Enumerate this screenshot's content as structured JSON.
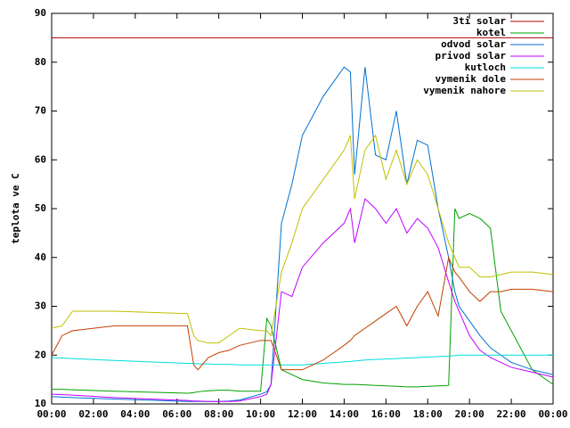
{
  "chart_data": {
    "type": "line",
    "ylabel": "teplota ve C",
    "x": [
      0,
      0.5,
      1,
      3,
      6.5,
      6.8,
      7,
      7.5,
      8,
      8.5,
      9,
      10,
      10.3,
      10.5,
      11,
      11.5,
      12,
      13,
      14,
      14.3,
      14.5,
      15,
      15.5,
      16,
      16.5,
      17,
      17.5,
      18,
      18.5,
      19,
      19.3,
      19.5,
      20,
      20.5,
      21,
      21.5,
      22,
      23,
      24
    ],
    "xlim": [
      0,
      24
    ],
    "xticks": [
      {
        "value": 0,
        "label": "00:00"
      },
      {
        "value": 2,
        "label": "02:00"
      },
      {
        "value": 4,
        "label": "04:00"
      },
      {
        "value": 6,
        "label": "06:00"
      },
      {
        "value": 8,
        "label": "08:00"
      },
      {
        "value": 10,
        "label": "10:00"
      },
      {
        "value": 12,
        "label": "12:00"
      },
      {
        "value": 14,
        "label": "14:00"
      },
      {
        "value": 16,
        "label": "16:00"
      },
      {
        "value": 18,
        "label": "18:00"
      },
      {
        "value": 20,
        "label": "20:00"
      },
      {
        "value": 22,
        "label": "22:00"
      },
      {
        "value": 24,
        "label": "00:00"
      }
    ],
    "ylim": [
      10,
      90
    ],
    "yticks": [
      10,
      20,
      30,
      40,
      50,
      60,
      70,
      80,
      90
    ],
    "legend": "top-right",
    "series": [
      {
        "name": "3ti solar",
        "color": "#b00000",
        "values": [
          85,
          85,
          85,
          85,
          85,
          85,
          85,
          85,
          85,
          85,
          85,
          85,
          85,
          85,
          85,
          85,
          85,
          85,
          85,
          85,
          85,
          85,
          85,
          85,
          85,
          85,
          85,
          85,
          85,
          85,
          85,
          85,
          85,
          85,
          85,
          85,
          85,
          85,
          85
        ]
      },
      {
        "name": "kotel",
        "color": "#00a000",
        "values": [
          13,
          13,
          12.9,
          12.6,
          12.2,
          12.3,
          12.5,
          12.7,
          12.8,
          12.8,
          12.6,
          12.6,
          27.5,
          26,
          17,
          16,
          15,
          14.3,
          14,
          14,
          14,
          13.9,
          13.8,
          13.7,
          13.6,
          13.5,
          13.5,
          13.6,
          13.7,
          13.8,
          50,
          48,
          49,
          48,
          46,
          29,
          25,
          17,
          14
        ]
      },
      {
        "name": "odvod solar",
        "color": "#0070d0",
        "values": [
          11.5,
          11.4,
          11.3,
          11,
          10.5,
          10.5,
          10.5,
          10.5,
          10.5,
          10.6,
          10.8,
          12,
          12.5,
          14,
          47,
          55,
          65,
          73,
          79,
          78,
          57,
          79,
          61,
          60,
          70,
          55,
          64,
          63,
          50,
          40,
          33,
          30,
          27,
          24,
          21.5,
          20,
          18.5,
          17,
          16
        ]
      },
      {
        "name": "privod solar",
        "color": "#c000ff",
        "values": [
          12,
          11.9,
          11.8,
          11.3,
          10.7,
          10.6,
          10.6,
          10.5,
          10.5,
          10.5,
          10.6,
          11.5,
          12,
          14,
          33,
          32,
          38,
          43,
          47,
          50,
          43,
          52,
          50,
          47,
          50,
          45,
          48,
          46,
          42,
          35,
          31,
          29,
          24,
          21,
          19.5,
          18.5,
          17.5,
          16.5,
          15.5
        ]
      },
      {
        "name": "kutloch",
        "color": "#00dddd",
        "values": [
          19.5,
          19.4,
          19.3,
          18.9,
          18.3,
          18.3,
          18.2,
          18.2,
          18.1,
          18.1,
          18,
          18,
          18,
          18,
          18,
          18,
          18,
          18.3,
          18.6,
          18.7,
          18.8,
          19,
          19.1,
          19.2,
          19.3,
          19.4,
          19.5,
          19.6,
          19.7,
          19.8,
          19.9,
          20,
          20,
          20,
          20,
          20,
          20,
          20,
          20
        ]
      },
      {
        "name": "vymenik dole",
        "color": "#c04000",
        "values": [
          20,
          24,
          25,
          26,
          26,
          18,
          17,
          19.5,
          20.5,
          21,
          22,
          23,
          23,
          23,
          17,
          17,
          17,
          19,
          22,
          23,
          24,
          25.5,
          27,
          28.5,
          30,
          26,
          30,
          33,
          28,
          40,
          37,
          36,
          33,
          31,
          33,
          33,
          33.5,
          33.5,
          33
        ]
      },
      {
        "name": "vymenik nahore",
        "color": "#c0c000",
        "values": [
          25.5,
          26,
          29,
          29,
          28.5,
          24,
          23,
          22.5,
          22.5,
          24,
          25.5,
          25,
          25,
          24,
          37,
          43,
          50,
          56,
          62,
          65,
          52,
          62,
          65,
          56,
          62,
          55,
          60,
          57,
          50,
          43,
          40,
          38,
          38,
          36,
          36,
          36.5,
          37,
          37,
          36.5
        ]
      }
    ]
  }
}
